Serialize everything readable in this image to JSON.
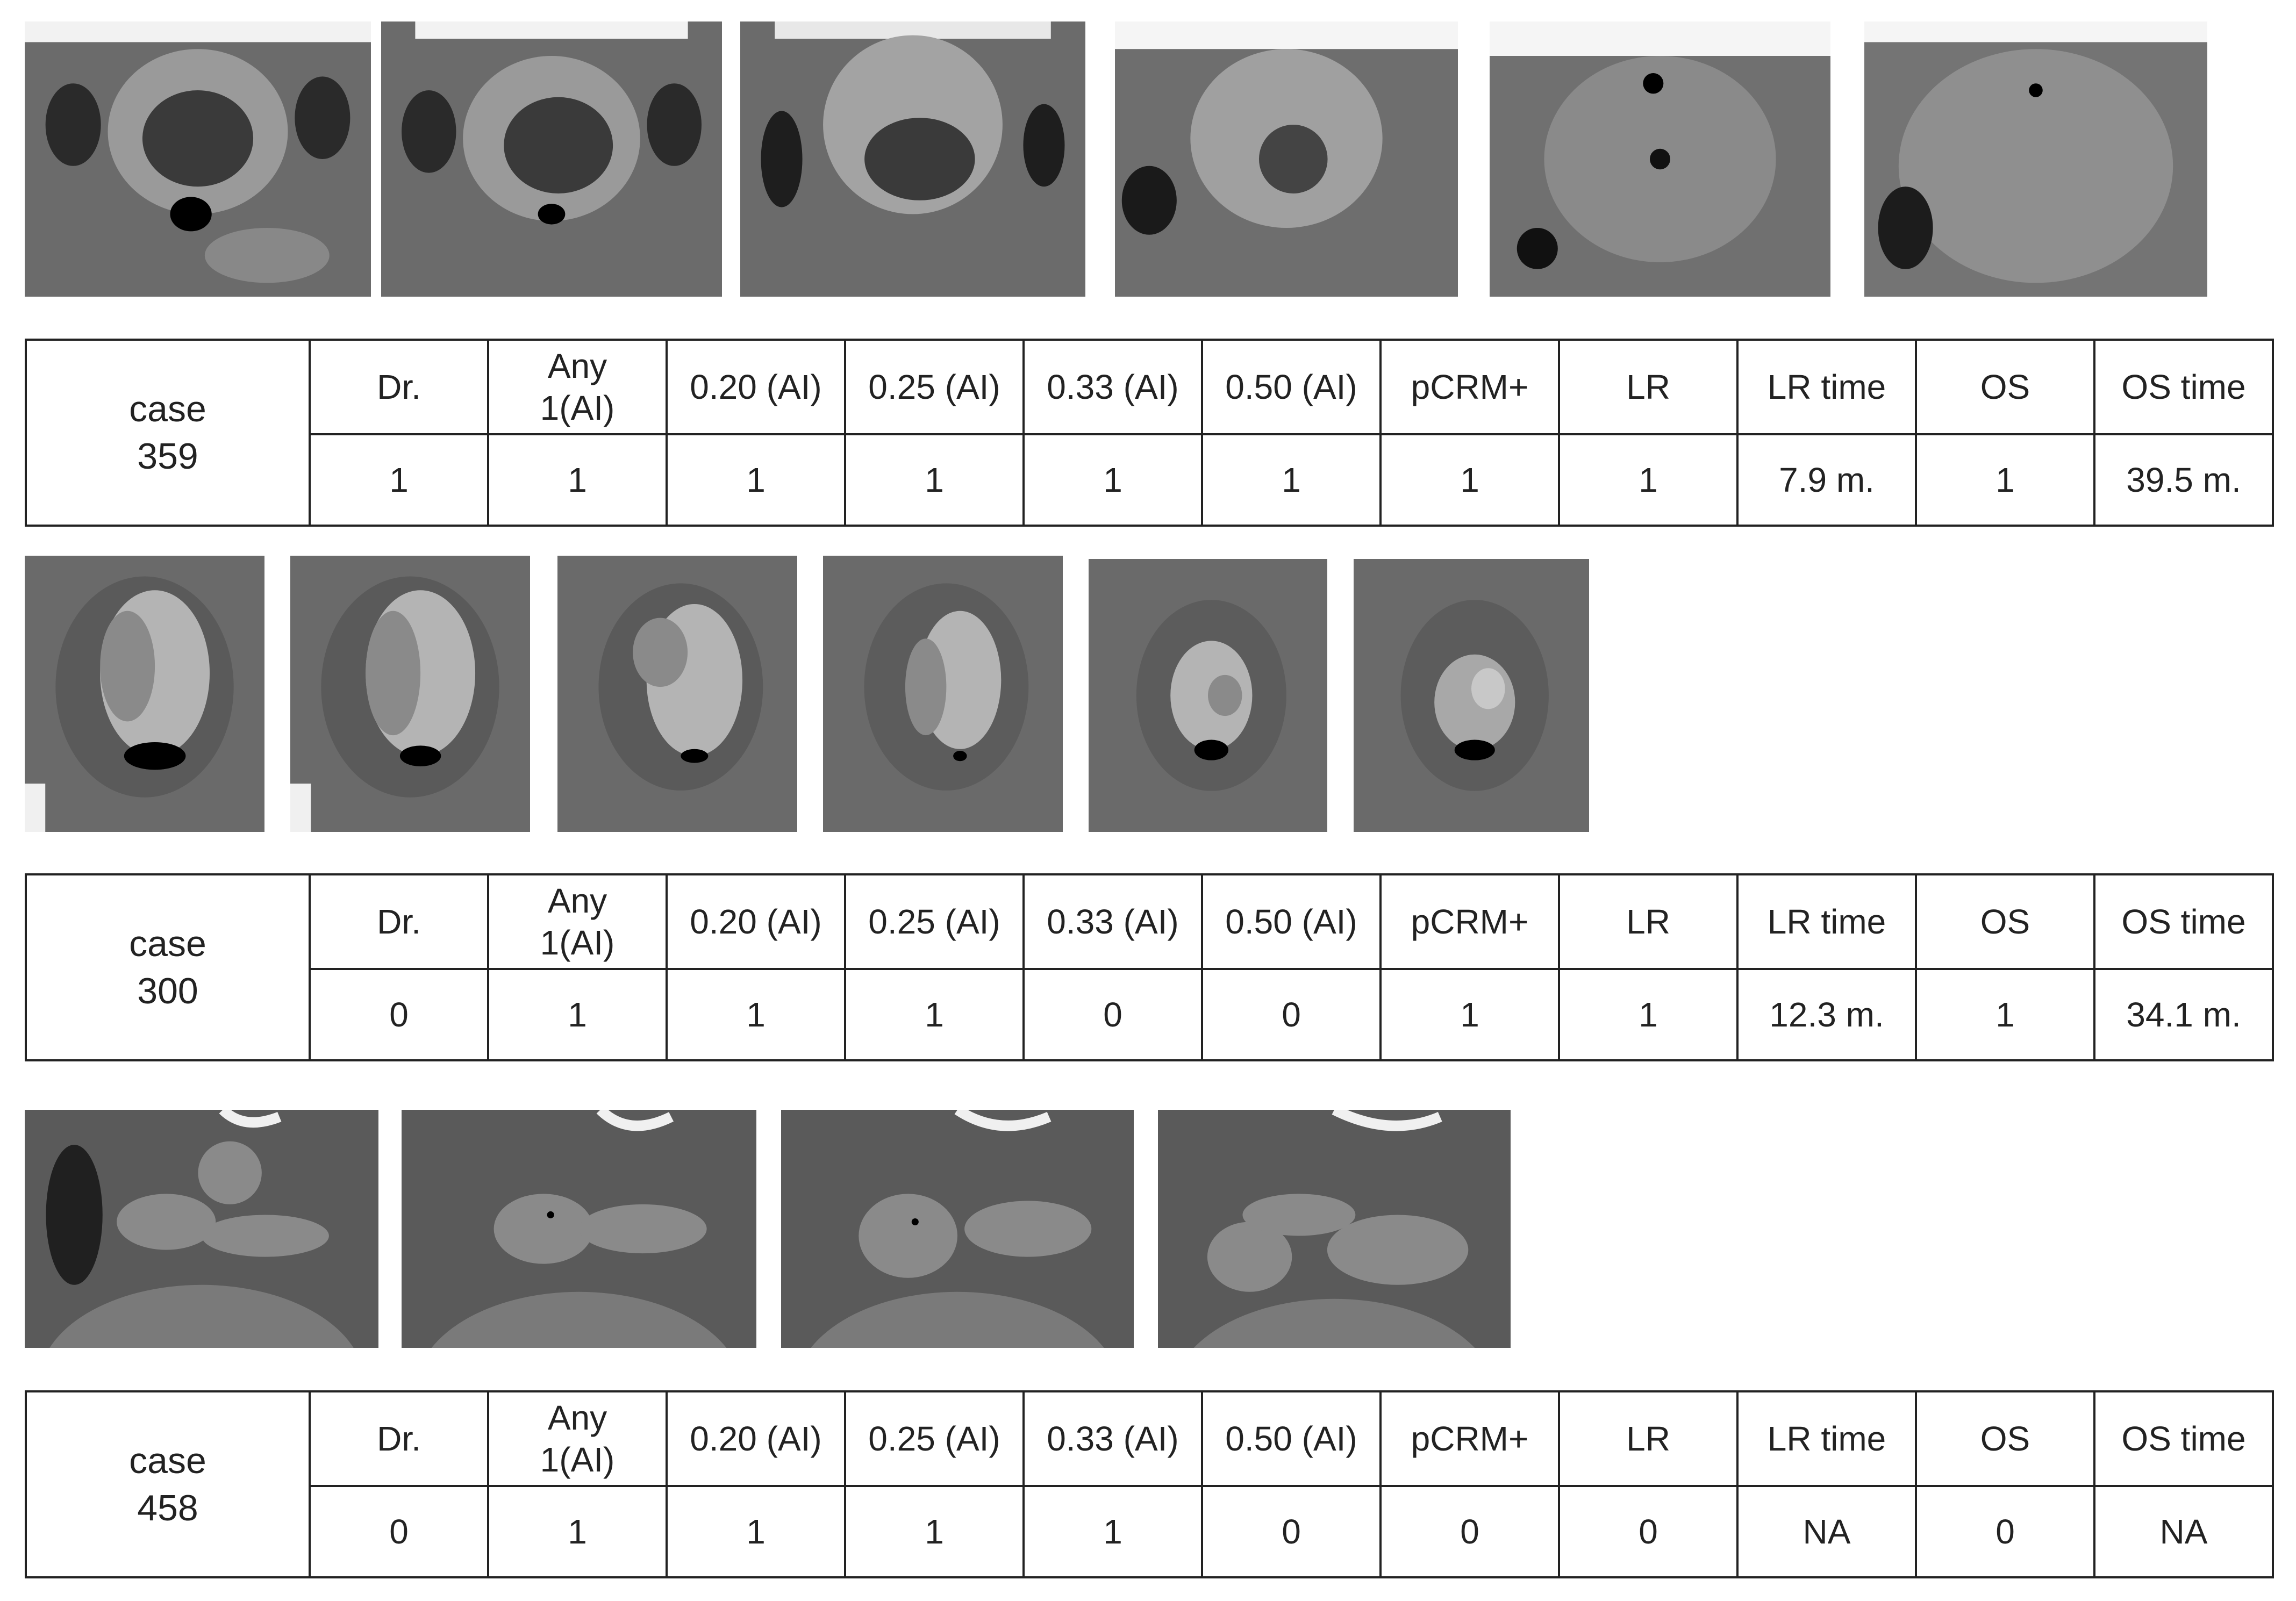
{
  "columns": [
    "Dr.",
    "Any 1(AI)",
    "0.20 (AI)",
    "0.25 (AI)",
    "0.33 (AI)",
    "0.50 (AI)",
    "pCRM+",
    "LR",
    "LR time",
    "OS",
    "OS time"
  ],
  "column_lines": [
    [
      "Dr."
    ],
    [
      "Any",
      "1(AI)"
    ],
    [
      "0.20 (AI)"
    ],
    [
      "0.25 (AI)"
    ],
    [
      "0.33 (AI)"
    ],
    [
      "0.50 (AI)"
    ],
    [
      "pCRM+"
    ],
    [
      "LR"
    ],
    [
      "LR time"
    ],
    [
      "OS"
    ],
    [
      "OS time"
    ]
  ],
  "cases": [
    {
      "label": "case",
      "number": "359",
      "values": [
        "1",
        "1",
        "1",
        "1",
        "1",
        "1",
        "1",
        "1",
        "7.9 m.",
        "1",
        "39.5 m."
      ],
      "scan_count": 6
    },
    {
      "label": "case",
      "number": "300",
      "values": [
        "0",
        "1",
        "1",
        "1",
        "0",
        "0",
        "1",
        "1",
        "12.3 m.",
        "1",
        "34.1 m."
      ],
      "scan_count": 6
    },
    {
      "label": "case",
      "number": "458",
      "values": [
        "0",
        "1",
        "1",
        "1",
        "1",
        "0",
        "0",
        "0",
        "NA",
        "0",
        "NA"
      ],
      "scan_count": 4
    }
  ],
  "colors": {
    "border": "#222222",
    "scan_dark": "#1a1a1a",
    "scan_mid": "#7a7a7a",
    "scan_light": "#bdbdbd"
  }
}
